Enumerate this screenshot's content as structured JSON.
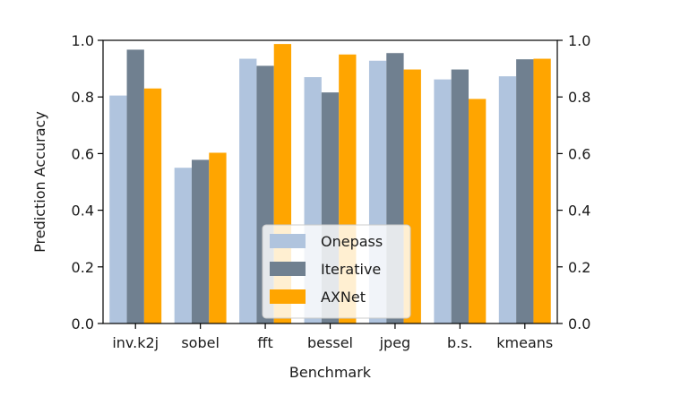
{
  "chart_data": {
    "type": "bar",
    "xlabel": "Benchmark",
    "ylabel": "Prediction Accuracy",
    "ylim": [
      0,
      1.0
    ],
    "yticks": [
      "0.0",
      "0.2",
      "0.4",
      "0.6",
      "0.8",
      "1.0"
    ],
    "right_axis_ticks": [
      "0.0",
      "0.2",
      "0.4",
      "0.6",
      "0.8",
      "1.0"
    ],
    "grid": false,
    "legend_position": "bottom-center",
    "categories": [
      "inv.k2j",
      "sobel",
      "fft",
      "bessel",
      "jpeg",
      "b.s.",
      "kmeans"
    ],
    "series": [
      {
        "name": "Onepass",
        "color": "#b0c4de",
        "values": [
          0.805,
          0.55,
          0.935,
          0.87,
          0.928,
          0.862,
          0.873
        ]
      },
      {
        "name": "Iterative",
        "color": "#708090",
        "values": [
          0.967,
          0.578,
          0.91,
          0.816,
          0.955,
          0.897,
          0.933
        ]
      },
      {
        "name": "AXNet",
        "color": "#ffa500",
        "values": [
          0.83,
          0.603,
          0.987,
          0.95,
          0.897,
          0.793,
          0.935
        ]
      }
    ]
  }
}
